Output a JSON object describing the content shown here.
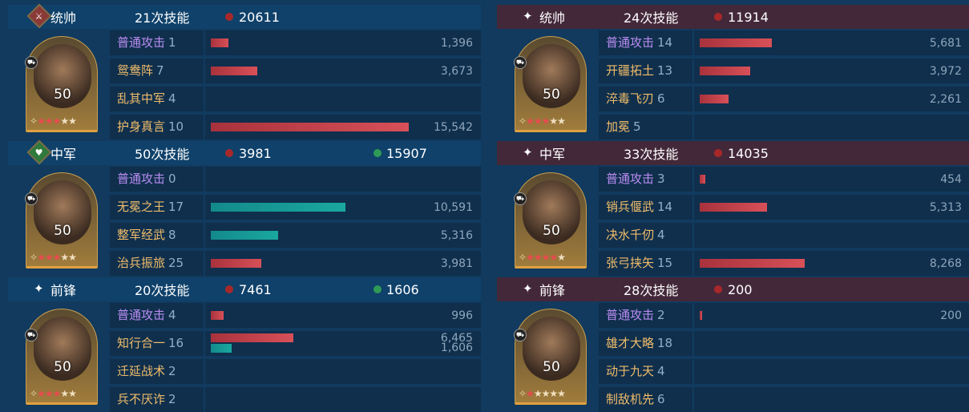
{
  "colors": {
    "damage": "#a8282a",
    "heal": "#2f9a55",
    "normal_attack": "#b98cf0",
    "skill": "#f0bc6a",
    "left_header": "#0f416a",
    "right_header": "#43283a"
  },
  "left": [
    {
      "role": "统帅",
      "role_icon": "sword-icon",
      "casts": "21次技能",
      "damage": "20611",
      "level": "50",
      "red_stars": 3,
      "total_stars": 5,
      "skills": [
        {
          "name": "普通攻击",
          "count": "1",
          "type": "purple",
          "bars": [
            {
              "value": 1396,
              "label": "1,396",
              "kind": "red"
            }
          ]
        },
        {
          "name": "鸳鸯阵",
          "count": "7",
          "type": "orange",
          "bars": [
            {
              "value": 3673,
              "label": "3,673",
              "kind": "red"
            }
          ]
        },
        {
          "name": "乱其中军",
          "count": "4",
          "type": "orange",
          "bars": []
        },
        {
          "name": "护身真言",
          "count": "10",
          "type": "orange",
          "bars": [
            {
              "value": 15542,
              "label": "15,542",
              "kind": "red"
            }
          ]
        }
      ]
    },
    {
      "role": "中军",
      "role_icon": "heart-icon",
      "casts": "50次技能",
      "damage": "3981",
      "heal": "15907",
      "level": "50",
      "red_stars": 3,
      "total_stars": 5,
      "skills": [
        {
          "name": "普通攻击",
          "count": "0",
          "type": "purple",
          "bars": []
        },
        {
          "name": "无冕之王",
          "count": "17",
          "type": "orange",
          "bars": [
            {
              "value": 10591,
              "label": "10,591",
              "kind": "teal"
            }
          ]
        },
        {
          "name": "整军经武",
          "count": "8",
          "type": "orange",
          "bars": [
            {
              "value": 5316,
              "label": "5,316",
              "kind": "teal"
            }
          ]
        },
        {
          "name": "治兵振旅",
          "count": "25",
          "type": "orange",
          "bars": [
            {
              "value": 3981,
              "label": "3,981",
              "kind": "red"
            }
          ]
        }
      ]
    },
    {
      "role": "前锋",
      "role_icon": "sparkle-icon",
      "casts": "20次技能",
      "damage": "7461",
      "heal": "1606",
      "level": "50",
      "red_stars": 3,
      "total_stars": 5,
      "skills": [
        {
          "name": "普通攻击",
          "count": "4",
          "type": "purple",
          "bars": [
            {
              "value": 996,
              "label": "996",
              "kind": "red"
            }
          ]
        },
        {
          "name": "知行合一",
          "count": "16",
          "type": "orange",
          "bars": [
            {
              "value": 6465,
              "label": "6,465",
              "kind": "red"
            },
            {
              "value": 1606,
              "label": "1,606",
              "kind": "teal"
            }
          ]
        },
        {
          "name": "迁延战术",
          "count": "2",
          "type": "orange",
          "bars": []
        },
        {
          "name": "兵不厌诈",
          "count": "2",
          "type": "orange",
          "bars": []
        }
      ]
    }
  ],
  "right": [
    {
      "role": "统帅",
      "role_icon": "sparkle-icon",
      "casts": "24次技能",
      "damage": "11914",
      "level": "50",
      "red_stars": 3,
      "total_stars": 5,
      "skills": [
        {
          "name": "普通攻击",
          "count": "14",
          "type": "purple",
          "bars": [
            {
              "value": 5681,
              "label": "5,681",
              "kind": "red"
            }
          ]
        },
        {
          "name": "开疆拓土",
          "count": "13",
          "type": "orange",
          "bars": [
            {
              "value": 3972,
              "label": "3,972",
              "kind": "red"
            }
          ]
        },
        {
          "name": "淬毒飞刃",
          "count": "6",
          "type": "orange",
          "bars": [
            {
              "value": 2261,
              "label": "2,261",
              "kind": "red"
            }
          ]
        },
        {
          "name": "加冕",
          "count": "5",
          "type": "orange",
          "bars": []
        }
      ]
    },
    {
      "role": "中军",
      "role_icon": "sparkle-icon",
      "casts": "33次技能",
      "damage": "14035",
      "level": "50",
      "red_stars": 4,
      "total_stars": 5,
      "skills": [
        {
          "name": "普通攻击",
          "count": "3",
          "type": "purple",
          "bars": [
            {
              "value": 454,
              "label": "454",
              "kind": "red"
            }
          ]
        },
        {
          "name": "销兵偃武",
          "count": "14",
          "type": "orange",
          "bars": [
            {
              "value": 5313,
              "label": "5,313",
              "kind": "red"
            }
          ]
        },
        {
          "name": "决水千仞",
          "count": "4",
          "type": "orange",
          "bars": []
        },
        {
          "name": "张弓挟矢",
          "count": "15",
          "type": "orange",
          "bars": [
            {
              "value": 8268,
              "label": "8,268",
              "kind": "red"
            }
          ]
        }
      ]
    },
    {
      "role": "前锋",
      "role_icon": "sparkle-icon",
      "casts": "28次技能",
      "damage": "200",
      "level": "50",
      "red_stars": 1,
      "total_stars": 5,
      "skills": [
        {
          "name": "普通攻击",
          "count": "2",
          "type": "purple",
          "bars": [
            {
              "value": 200,
              "label": "200",
              "kind": "red"
            }
          ]
        },
        {
          "name": "雄才大略",
          "count": "18",
          "type": "orange",
          "bars": []
        },
        {
          "name": "动于九天",
          "count": "4",
          "type": "orange",
          "bars": []
        },
        {
          "name": "制敌机先",
          "count": "6",
          "type": "orange",
          "bars": []
        }
      ]
    }
  ]
}
